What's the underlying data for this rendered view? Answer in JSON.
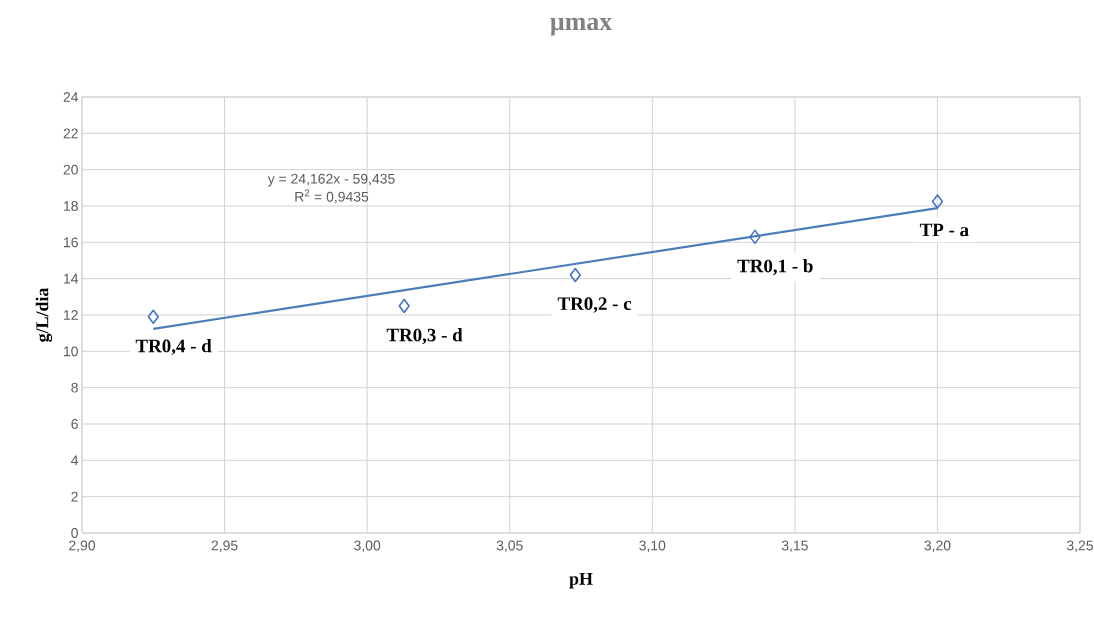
{
  "chart_data": {
    "type": "scatter",
    "title": "µmax",
    "xlabel": "pH",
    "ylabel": "g/L/dia",
    "xlim": [
      2.9,
      3.25
    ],
    "xticks": [
      {
        "value": 2.9,
        "label": "2,90"
      },
      {
        "value": 2.95,
        "label": "2,95"
      },
      {
        "value": 3.0,
        "label": "3,00"
      },
      {
        "value": 3.05,
        "label": "3,05"
      },
      {
        "value": 3.1,
        "label": "3,10"
      },
      {
        "value": 3.15,
        "label": "3,15"
      },
      {
        "value": 3.2,
        "label": "3,20"
      },
      {
        "value": 3.25,
        "label": "3,25"
      }
    ],
    "ylim": [
      0,
      24
    ],
    "yticks": [
      0,
      2,
      4,
      6,
      8,
      10,
      12,
      14,
      16,
      18,
      20,
      22,
      24
    ],
    "grid": true,
    "series": [
      {
        "color": "#4472c4",
        "marker": "diamond",
        "x": [
          2.925,
          3.013,
          3.073,
          3.136,
          3.2
        ],
        "values": [
          11.9,
          12.5,
          14.2,
          16.3,
          18.25
        ]
      },
      {
        "type": "line",
        "color": "#4a7ebb",
        "marker": "none",
        "line_style": "solid",
        "x": [
          2.925,
          3.2
        ],
        "values": [
          11.24,
          17.88
        ]
      }
    ],
    "annotations": [
      "y = 24,162x - 59,435",
      "R$^{2}$ = 0,9435",
      {
        "text": "TR0,4 - d",
        "x": 2.925,
        "y": 11.9
      },
      {
        "text": "TR0,3 - d",
        "x": 3.013,
        "y": 12.5
      },
      {
        "text": "TR0,2 - c",
        "x": 3.073,
        "y": 14.2
      },
      {
        "text": "TR0,1 - b",
        "x": 3.136,
        "y": 16.3
      },
      {
        "text": "TP - a",
        "x": 3.2,
        "y": 18.25
      }
    ]
  }
}
